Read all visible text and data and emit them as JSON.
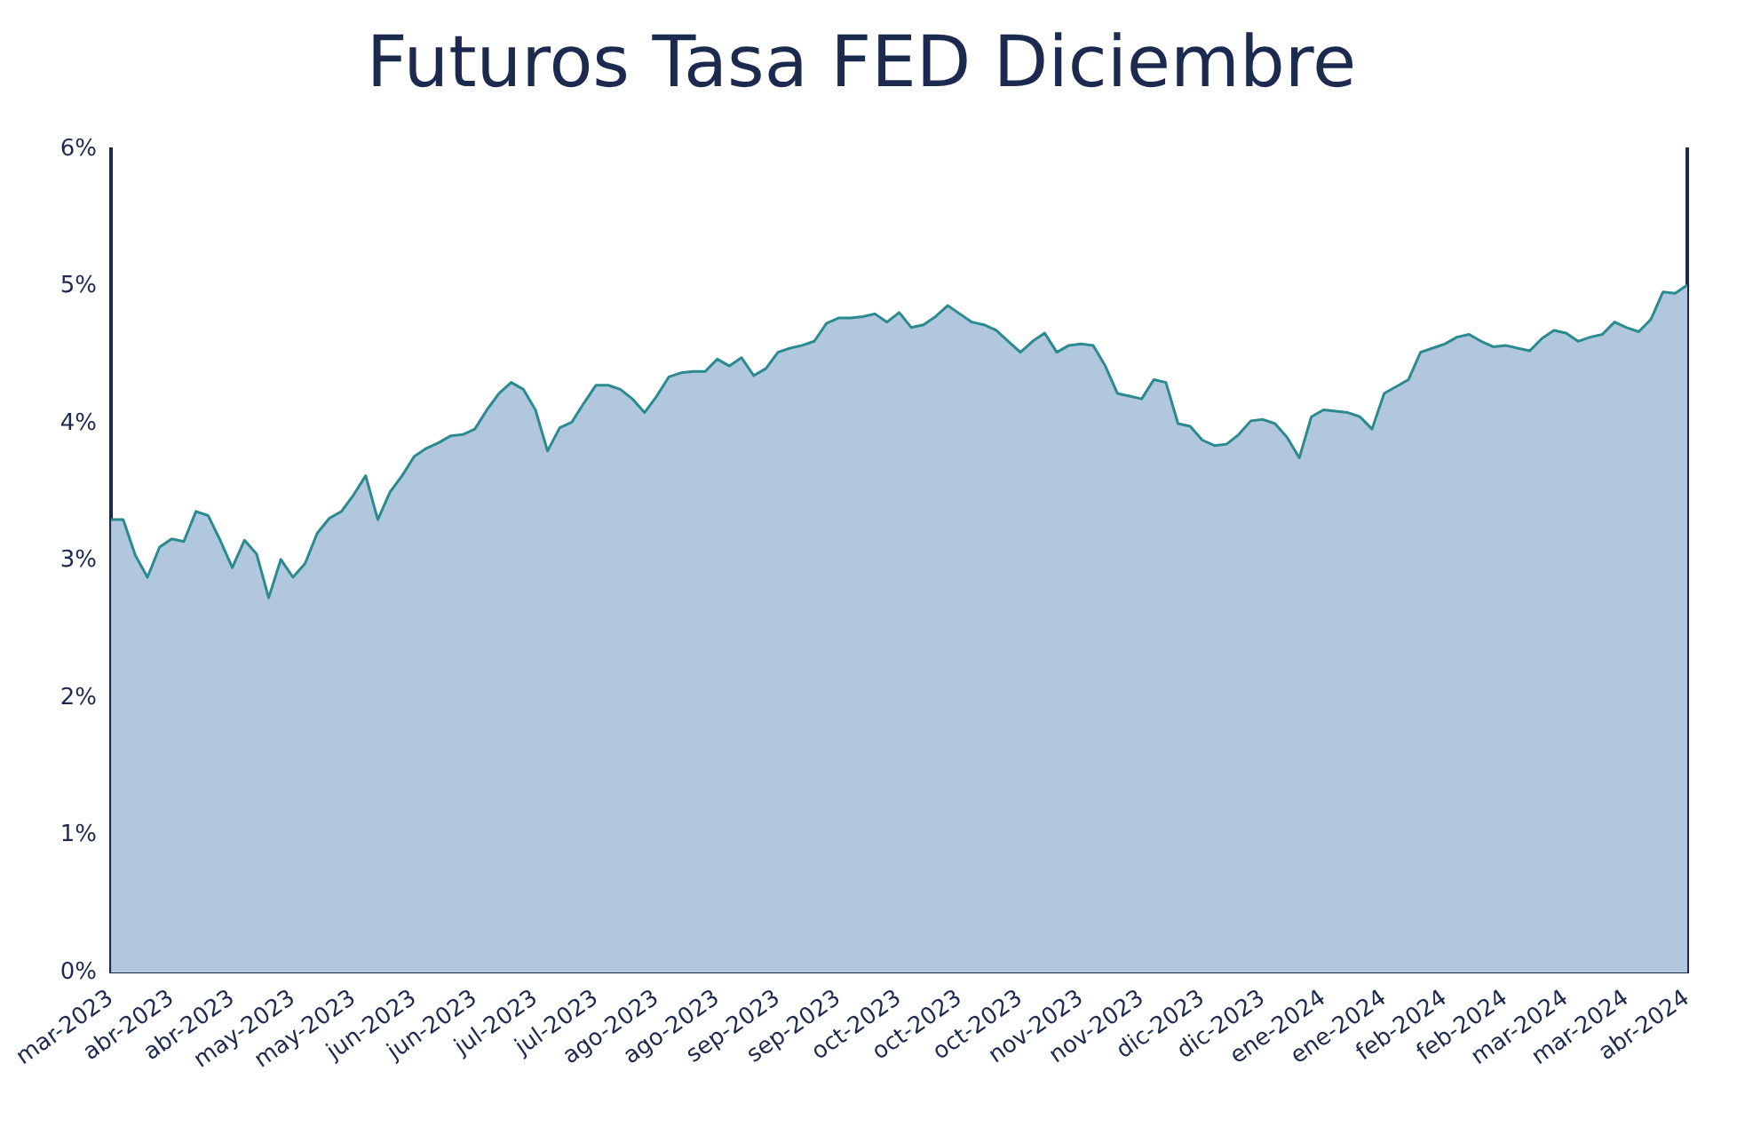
{
  "chart_data": {
    "type": "area",
    "title": "Futuros Tasa FED Diciembre",
    "categories": [
      "mar-2023",
      null,
      null,
      null,
      null,
      "abr-2023",
      null,
      null,
      null,
      null,
      "abr-2023",
      null,
      null,
      null,
      null,
      "may-2023",
      null,
      null,
      null,
      null,
      "may-2023",
      null,
      null,
      null,
      null,
      "jun-2023",
      null,
      null,
      null,
      null,
      "jun-2023",
      null,
      null,
      null,
      null,
      "jul-2023",
      null,
      null,
      null,
      null,
      "jul-2023",
      null,
      null,
      null,
      null,
      "ago-2023",
      null,
      null,
      null,
      null,
      "ago-2023",
      null,
      null,
      null,
      null,
      "sep-2023",
      null,
      null,
      null,
      null,
      "sep-2023",
      null,
      null,
      null,
      null,
      "oct-2023",
      null,
      null,
      null,
      null,
      "oct-2023",
      null,
      null,
      null,
      null,
      "oct-2023",
      null,
      null,
      null,
      null,
      "nov-2023",
      null,
      null,
      null,
      null,
      "nov-2023",
      null,
      null,
      null,
      null,
      "dic-2023",
      null,
      null,
      null,
      null,
      "dic-2023",
      null,
      null,
      null,
      null,
      "ene-2024",
      null,
      null,
      null,
      null,
      "ene-2024",
      null,
      null,
      null,
      null,
      "feb-2024",
      null,
      null,
      null,
      null,
      "feb-2024",
      null,
      null,
      null,
      null,
      "mar-2024",
      null,
      null,
      null,
      null,
      "mar-2024",
      null,
      null,
      null,
      null,
      "abr-2024"
    ],
    "series": [
      {
        "color": "#b0c7dd",
        "values": [
          3.3,
          3.3,
          3.04,
          2.88,
          3.1,
          3.16,
          3.14,
          3.36,
          3.33,
          3.15,
          2.95,
          3.15,
          3.05,
          2.73,
          3.01,
          2.88,
          2.98,
          3.2,
          3.31,
          3.36,
          3.48,
          3.62,
          3.3,
          3.5,
          3.62,
          3.76,
          3.82,
          3.86,
          3.91,
          3.92,
          3.96,
          4.1,
          4.22,
          4.3,
          4.25,
          4.1,
          3.8,
          3.97,
          4.01,
          4.15,
          4.28,
          4.28,
          4.25,
          4.18,
          4.08,
          4.2,
          4.34,
          4.37,
          4.38,
          4.38,
          4.47,
          4.42,
          4.48,
          4.35,
          4.4,
          4.52,
          4.55,
          4.57,
          4.6,
          4.73,
          4.77,
          4.77,
          4.78,
          4.8,
          4.74,
          4.81,
          4.7,
          4.72,
          4.78,
          4.86,
          4.8,
          4.74,
          4.72,
          4.68,
          4.6,
          4.52,
          4.6,
          4.66,
          4.52,
          4.57,
          4.58,
          4.57,
          4.42,
          4.22,
          4.2,
          4.18,
          4.32,
          4.3,
          4.0,
          3.98,
          3.88,
          3.84,
          3.85,
          3.92,
          4.02,
          4.03,
          4.0,
          3.9,
          3.75,
          4.05,
          4.1,
          4.09,
          4.08,
          4.05,
          3.96,
          4.22,
          4.27,
          4.32,
          4.52,
          4.55,
          4.58,
          4.63,
          4.65,
          4.6,
          4.56,
          4.57,
          4.55,
          4.53,
          4.62,
          4.68,
          4.66,
          4.6,
          4.63,
          4.65,
          4.74,
          4.7,
          4.67,
          4.76,
          4.96,
          4.95,
          5.01
        ]
      }
    ],
    "ylim": [
      0,
      6
    ],
    "yticks": [
      {
        "value": 0,
        "label": "0%"
      },
      {
        "value": 1,
        "label": "1%"
      },
      {
        "value": 2,
        "label": "2%"
      },
      {
        "value": 3,
        "label": "3%"
      },
      {
        "value": 4,
        "label": "4%"
      },
      {
        "value": 5,
        "label": "5%"
      },
      {
        "value": 6,
        "label": "6%"
      }
    ],
    "grid": false,
    "legend": false
  }
}
